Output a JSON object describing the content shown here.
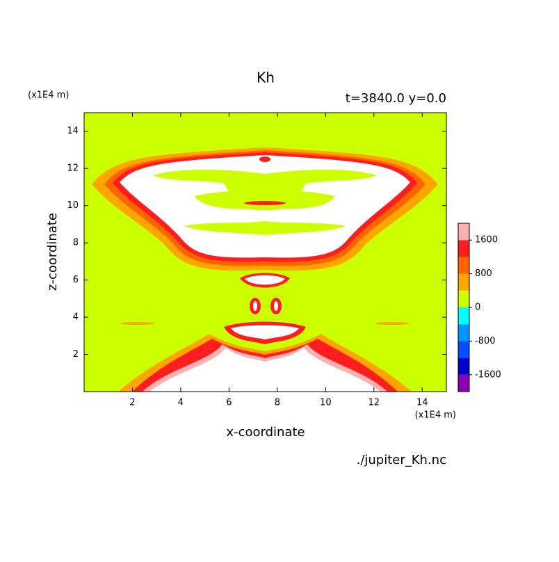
{
  "chart_data": {
    "type": "contour",
    "title": "Kh",
    "subtitle": "t=3840.0 y=0.0",
    "x_label": "x-coordinate",
    "y_label": "z-coordinate",
    "x_unit": "(x1E4 m)",
    "y_unit": "(x1E4 m)",
    "source": "./jupiter_Kh.nc",
    "xlim": [
      0,
      15
    ],
    "ylim": [
      0,
      15
    ],
    "xticks": [
      2,
      4,
      6,
      8,
      10,
      12,
      14
    ],
    "yticks": [
      2,
      4,
      6,
      8,
      10,
      12,
      14
    ],
    "colorbar": {
      "levels": [
        -2000,
        -1600,
        -1200,
        -800,
        -400,
        0,
        400,
        800,
        1200,
        1600,
        2000
      ],
      "colors": [
        "#8a00b0",
        "#0000c8",
        "#0050ff",
        "#0096ff",
        "#00ffff",
        "#ccff00",
        "#ffa500",
        "#ff6400",
        "#ff1e1e",
        "#ffb0b0"
      ],
      "ticks": [
        -1600,
        -800,
        0,
        800,
        1600
      ]
    }
  }
}
